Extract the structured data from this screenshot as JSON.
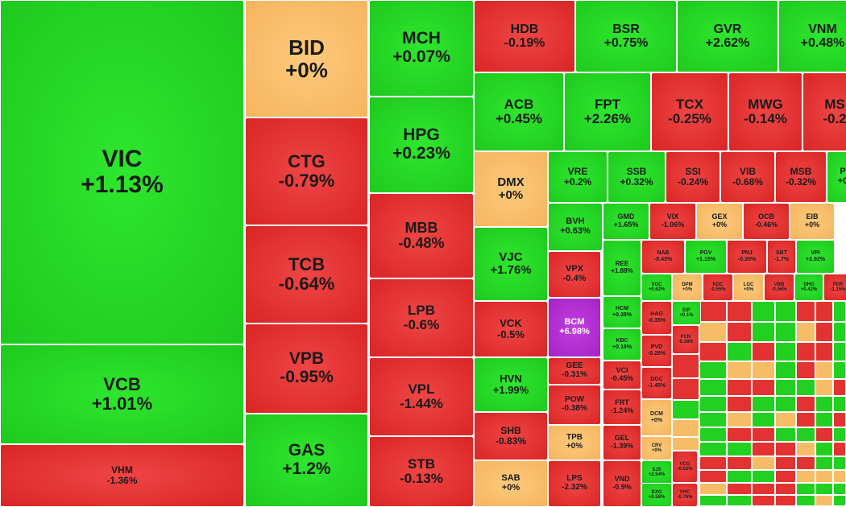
{
  "chart_data": {
    "type": "treemap",
    "colors": {
      "up": "#22cc22",
      "down": "#e03030",
      "flat": "#f7bd66",
      "ceiling": "#b22fd3"
    },
    "tiles": [
      {
        "ticker": "VIC",
        "change": "+1.13%",
        "pct": 1.13
      },
      {
        "ticker": "VCB",
        "change": "+1.01%",
        "pct": 1.01
      },
      {
        "ticker": "VHM",
        "change": "-1.36%",
        "pct": -1.36
      },
      {
        "ticker": "BID",
        "change": "+0%",
        "pct": 0
      },
      {
        "ticker": "CTG",
        "change": "-0.79%",
        "pct": -0.79
      },
      {
        "ticker": "TCB",
        "change": "-0.64%",
        "pct": -0.64
      },
      {
        "ticker": "VPB",
        "change": "-0.95%",
        "pct": -0.95
      },
      {
        "ticker": "GAS",
        "change": "+1.2%",
        "pct": 1.2
      },
      {
        "ticker": "MCH",
        "change": "+0.07%",
        "pct": 0.07
      },
      {
        "ticker": "HPG",
        "change": "+0.23%",
        "pct": 0.23
      },
      {
        "ticker": "MBB",
        "change": "-0.48%",
        "pct": -0.48
      },
      {
        "ticker": "LPB",
        "change": "-0.6%",
        "pct": -0.6
      },
      {
        "ticker": "VPL",
        "change": "-1.44%",
        "pct": -1.44
      },
      {
        "ticker": "STB",
        "change": "-0.13%",
        "pct": -0.13
      },
      {
        "ticker": "HDB",
        "change": "-0.19%",
        "pct": -0.19
      },
      {
        "ticker": "BSR",
        "change": "+0.75%",
        "pct": 0.75
      },
      {
        "ticker": "GVR",
        "change": "+2.62%",
        "pct": 2.62
      },
      {
        "ticker": "VNM",
        "change": "+0.48%",
        "pct": 0.48
      },
      {
        "ticker": "ACB",
        "change": "+0.45%",
        "pct": 0.45
      },
      {
        "ticker": "FPT",
        "change": "+2.26%",
        "pct": 2.26
      },
      {
        "ticker": "TCX",
        "change": "-0.25%",
        "pct": -0.25
      },
      {
        "ticker": "MWG",
        "change": "-0.14%",
        "pct": -0.14
      },
      {
        "ticker": "MS",
        "change": "-0.2",
        "pct": -0.2
      },
      {
        "ticker": "DMX",
        "change": "+0%",
        "pct": 0
      },
      {
        "ticker": "VRE",
        "change": "+0.2%",
        "pct": 0.2
      },
      {
        "ticker": "SSB",
        "change": "+0.32%",
        "pct": 0.32
      },
      {
        "ticker": "SSI",
        "change": "-0.24%",
        "pct": -0.24
      },
      {
        "ticker": "VIB",
        "change": "-0.68%",
        "pct": -0.68
      },
      {
        "ticker": "MSB",
        "change": "-0.32%",
        "pct": -0.32
      },
      {
        "ticker": "P",
        "change": "+0",
        "pct": 0.1
      },
      {
        "ticker": "VJC",
        "change": "+1.76%",
        "pct": 1.76
      },
      {
        "ticker": "VCK",
        "change": "-0.5%",
        "pct": -0.5
      },
      {
        "ticker": "HVN",
        "change": "+1.99%",
        "pct": 1.99
      },
      {
        "ticker": "SHB",
        "change": "-0.83%",
        "pct": -0.83
      },
      {
        "ticker": "SAB",
        "change": "+0%",
        "pct": 0
      },
      {
        "ticker": "BVH",
        "change": "+0.63%",
        "pct": 0.63
      },
      {
        "ticker": "GMD",
        "change": "+1.65%",
        "pct": 1.65
      },
      {
        "ticker": "VIX",
        "change": "-1.06%",
        "pct": -1.06
      },
      {
        "ticker": "GEX",
        "change": "+0%",
        "pct": 0
      },
      {
        "ticker": "OCB",
        "change": "-0.46%",
        "pct": -0.46
      },
      {
        "ticker": "EIB",
        "change": "+0%",
        "pct": 0
      },
      {
        "ticker": "VPX",
        "change": "-0.4%",
        "pct": -0.4
      },
      {
        "ticker": "REE",
        "change": "+1.88%",
        "pct": 1.88
      },
      {
        "ticker": "NAB",
        "change": "-0.43%",
        "pct": -0.43
      },
      {
        "ticker": "PGV",
        "change": "+1.15%",
        "pct": 1.15
      },
      {
        "ticker": "PNJ",
        "change": "-0.35%",
        "pct": -0.35
      },
      {
        "ticker": "SBT",
        "change": "-1.7%",
        "pct": -1.7
      },
      {
        "ticker": "VPI",
        "change": "+2.92%",
        "pct": 2.92
      },
      {
        "ticker": "BCM",
        "change": "+6.98%",
        "pct": 6.98
      },
      {
        "ticker": "HCM",
        "change": "+0.38%",
        "pct": 0.38
      },
      {
        "ticker": "KBC",
        "change": "+0.18%",
        "pct": 0.18
      },
      {
        "ticker": "VGC",
        "change": "+0.62%",
        "pct": 0.62
      },
      {
        "ticker": "DPM",
        "change": "+0%",
        "pct": 0
      },
      {
        "ticker": "KDC",
        "change": "-0.55%",
        "pct": -0.55
      },
      {
        "ticker": "LGC",
        "change": "+0%",
        "pct": 0
      },
      {
        "ticker": "VBB",
        "change": "-0.56%",
        "pct": -0.56
      },
      {
        "ticker": "DHG",
        "change": "+0.42%",
        "pct": 0.42
      },
      {
        "ticker": "PDR",
        "change": "-1.15%",
        "pct": -1.15
      },
      {
        "ticker": "EIP",
        "change": "+0.1%",
        "pct": 0.1
      },
      {
        "ticker": "HAG",
        "change": "-0.35%",
        "pct": -0.35
      },
      {
        "ticker": "PVD",
        "change": "-0.26%",
        "pct": -0.26
      },
      {
        "ticker": "DGC",
        "change": "-1.45%",
        "pct": -1.45
      },
      {
        "ticker": "GEE",
        "change": "-0.31%",
        "pct": -0.31
      },
      {
        "ticker": "VCI",
        "change": "-0.45%",
        "pct": -0.45
      },
      {
        "ticker": "POW",
        "change": "-0.38%",
        "pct": -0.38
      },
      {
        "ticker": "FRT",
        "change": "-1.24%",
        "pct": -1.24
      },
      {
        "ticker": "DCM",
        "change": "+0%",
        "pct": 0
      },
      {
        "ticker": "TPB",
        "change": "+0%",
        "pct": 0
      },
      {
        "ticker": "GEL",
        "change": "-1.39%",
        "pct": -1.39
      },
      {
        "ticker": "CRV",
        "change": "+0%",
        "pct": 0
      },
      {
        "ticker": "SJS",
        "change": "+2.54%",
        "pct": 2.54
      },
      {
        "ticker": "LPS",
        "change": "-2.32%",
        "pct": -2.32
      },
      {
        "ticker": "VND",
        "change": "-0.9%",
        "pct": -0.9
      },
      {
        "ticker": "DXG",
        "change": "+0.58%",
        "pct": 0.58
      },
      {
        "ticker": "VCG",
        "change": "-0.62%",
        "pct": -0.62
      },
      {
        "ticker": "VHC",
        "change": "-0.76%",
        "pct": -0.76
      },
      {
        "ticker": "FCN",
        "change": "-0.38%",
        "pct": -0.38
      }
    ]
  }
}
